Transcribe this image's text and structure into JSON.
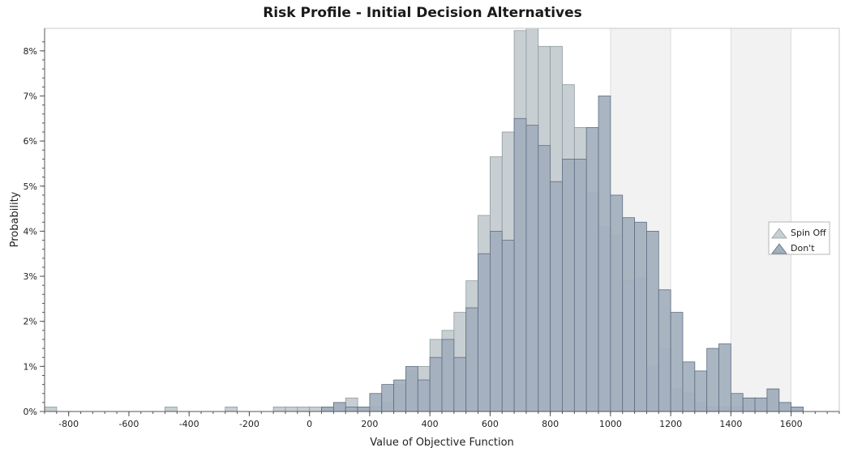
{
  "chart_data": {
    "type": "bar",
    "title": "Risk Profile - Initial Decision Alternatives",
    "xlabel": "Value of Objective Function",
    "ylabel": "Probability",
    "xlim": [
      -880,
      1760
    ],
    "ylim": [
      0,
      8.5
    ],
    "bin_width": 40,
    "x_ticks": [
      "-800",
      "-600",
      "-400",
      "-200",
      "0",
      "200",
      "400",
      "600",
      "800",
      "1000",
      "1200",
      "1400",
      "1600"
    ],
    "x_tick_values": [
      -800,
      -600,
      -400,
      -200,
      0,
      200,
      400,
      600,
      800,
      1000,
      1200,
      1400,
      1600
    ],
    "y_ticks": [
      "0%",
      "1%",
      "2%",
      "3%",
      "4%",
      "5%",
      "6%",
      "7%",
      "8%"
    ],
    "y_tick_values": [
      0,
      1,
      2,
      3,
      4,
      5,
      6,
      7,
      8
    ],
    "shaded_bands": [
      [
        1000,
        1200
      ],
      [
        1400,
        1600
      ]
    ],
    "grid": false,
    "legend_position": "right",
    "series": [
      {
        "name": "Spin Off",
        "color": "#c8cfd2",
        "stroke": "#8f9a9f",
        "bins": [
          [
            -880,
            0.1
          ],
          [
            -480,
            0.1
          ],
          [
            -280,
            0.1
          ],
          [
            -120,
            0.1
          ],
          [
            -80,
            0.1
          ],
          [
            -40,
            0.1
          ],
          [
            0,
            0.1
          ],
          [
            40,
            0.1
          ],
          [
            80,
            0.2
          ],
          [
            120,
            0.3
          ],
          [
            160,
            0.1
          ],
          [
            200,
            0.1
          ],
          [
            240,
            0.2
          ],
          [
            280,
            0.6
          ],
          [
            320,
            0.9
          ],
          [
            360,
            1.0
          ],
          [
            400,
            1.6
          ],
          [
            440,
            1.8
          ],
          [
            480,
            2.2
          ],
          [
            520,
            2.9
          ],
          [
            560,
            4.35
          ],
          [
            600,
            5.65
          ],
          [
            640,
            6.2
          ],
          [
            680,
            8.45
          ],
          [
            720,
            8.5
          ],
          [
            760,
            8.1
          ],
          [
            800,
            8.1
          ],
          [
            840,
            7.25
          ],
          [
            880,
            6.3
          ],
          [
            920,
            4.85
          ],
          [
            960,
            4.1
          ],
          [
            1000,
            3.9
          ],
          [
            1040,
            2.9
          ],
          [
            1080,
            2.95
          ],
          [
            1120,
            1.0
          ],
          [
            1160,
            1.4
          ],
          [
            1200,
            0.5
          ],
          [
            1240,
            0.4
          ],
          [
            1280,
            0.2
          ],
          [
            1320,
            0.1
          ],
          [
            1360,
            0.1
          ],
          [
            1400,
            0.1
          ],
          [
            1440,
            0.3
          ],
          [
            1480,
            0.3
          ],
          [
            1520,
            0.5
          ],
          [
            1560,
            0.2
          ],
          [
            1600,
            0.1
          ]
        ]
      },
      {
        "name": "Don't",
        "color": "#a3afbd",
        "stroke": "#5e6e84",
        "bins": [
          [
            40,
            0.1
          ],
          [
            80,
            0.2
          ],
          [
            120,
            0.1
          ],
          [
            160,
            0.1
          ],
          [
            200,
            0.4
          ],
          [
            240,
            0.6
          ],
          [
            280,
            0.7
          ],
          [
            320,
            1.0
          ],
          [
            360,
            0.7
          ],
          [
            400,
            1.2
          ],
          [
            440,
            1.6
          ],
          [
            480,
            1.2
          ],
          [
            520,
            2.3
          ],
          [
            560,
            3.5
          ],
          [
            600,
            4.0
          ],
          [
            640,
            3.8
          ],
          [
            680,
            6.5
          ],
          [
            720,
            6.35
          ],
          [
            760,
            5.9
          ],
          [
            800,
            5.1
          ],
          [
            840,
            5.6
          ],
          [
            880,
            5.6
          ],
          [
            920,
            6.3
          ],
          [
            960,
            7.0
          ],
          [
            1000,
            4.8
          ],
          [
            1040,
            4.3
          ],
          [
            1080,
            4.2
          ],
          [
            1120,
            4.0
          ],
          [
            1160,
            2.7
          ],
          [
            1200,
            2.2
          ],
          [
            1240,
            1.1
          ],
          [
            1280,
            0.9
          ],
          [
            1320,
            1.4
          ],
          [
            1360,
            1.5
          ],
          [
            1400,
            0.4
          ],
          [
            1440,
            0.3
          ],
          [
            1480,
            0.3
          ],
          [
            1520,
            0.5
          ],
          [
            1560,
            0.2
          ],
          [
            1600,
            0.1
          ]
        ]
      }
    ]
  }
}
